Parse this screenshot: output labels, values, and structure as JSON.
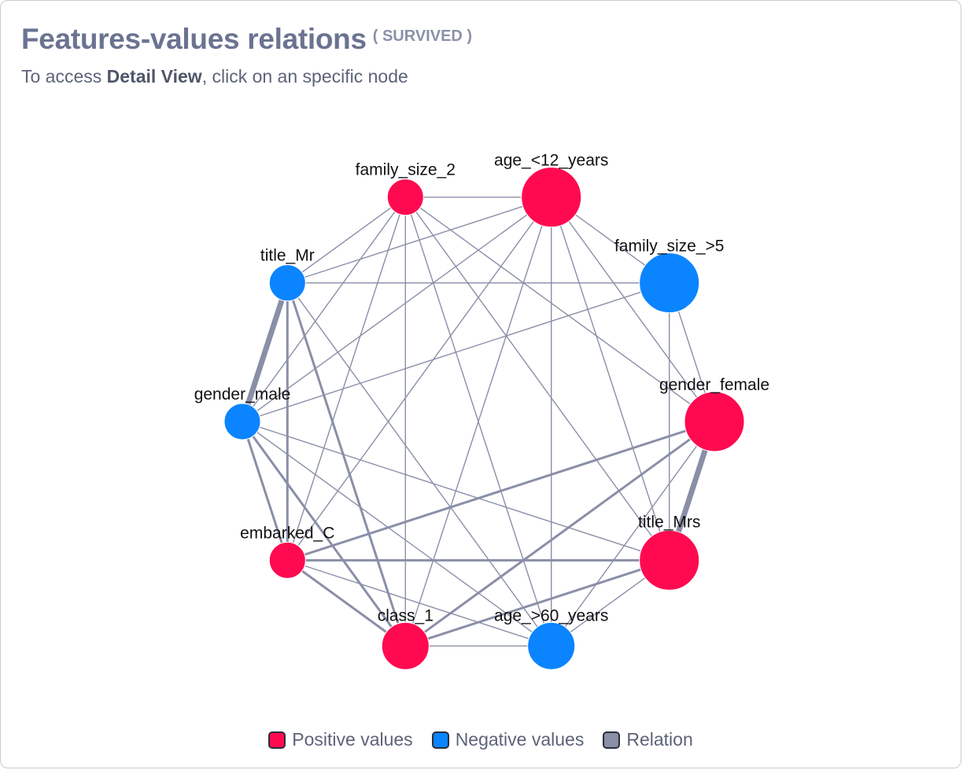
{
  "header": {
    "title": "Features-values relations",
    "target": "( SURVIVED )",
    "subtitle_prefix": "To access ",
    "subtitle_bold": "Detail View",
    "subtitle_suffix": ", click on an specific node"
  },
  "colors": {
    "positive": "#ff0a50",
    "negative": "#0a84ff",
    "relation": "#8a8fa8"
  },
  "graph": {
    "nodes": [
      {
        "id": "age_<12_years",
        "label": "age_<12_years",
        "polarity": "positive",
        "size": 3
      },
      {
        "id": "family_size_>5",
        "label": "family_size_>5",
        "polarity": "negative",
        "size": 3
      },
      {
        "id": "gender_female",
        "label": "gender_female",
        "polarity": "positive",
        "size": 3
      },
      {
        "id": "title_Mrs",
        "label": "title_Mrs",
        "polarity": "positive",
        "size": 3
      },
      {
        "id": "age_>60_years",
        "label": "age_>60_years",
        "polarity": "negative",
        "size": 2
      },
      {
        "id": "class_1",
        "label": "class_1",
        "polarity": "positive",
        "size": 2
      },
      {
        "id": "embarked_C",
        "label": "embarked_C",
        "polarity": "positive",
        "size": 1
      },
      {
        "id": "gender_male",
        "label": "gender_male",
        "polarity": "negative",
        "size": 1
      },
      {
        "id": "title_Mr",
        "label": "title_Mr",
        "polarity": "negative",
        "size": 1
      },
      {
        "id": "family_size_2",
        "label": "family_size_2",
        "polarity": "positive",
        "size": 1
      }
    ],
    "edges": [
      {
        "source": "title_Mr",
        "target": "gender_male",
        "weight": 3
      },
      {
        "source": "gender_female",
        "target": "title_Mrs",
        "weight": 3
      },
      {
        "source": "title_Mr",
        "target": "class_1",
        "weight": 2
      },
      {
        "source": "title_Mr",
        "target": "embarked_C",
        "weight": 2
      },
      {
        "source": "gender_male",
        "target": "class_1",
        "weight": 2
      },
      {
        "source": "gender_male",
        "target": "embarked_C",
        "weight": 2
      },
      {
        "source": "gender_female",
        "target": "class_1",
        "weight": 2
      },
      {
        "source": "gender_female",
        "target": "embarked_C",
        "weight": 2
      },
      {
        "source": "title_Mrs",
        "target": "embarked_C",
        "weight": 2
      },
      {
        "source": "title_Mrs",
        "target": "class_1",
        "weight": 2
      },
      {
        "source": "embarked_C",
        "target": "class_1",
        "weight": 2
      },
      {
        "source": "age_<12_years",
        "target": "family_size_>5",
        "weight": 1
      },
      {
        "source": "age_<12_years",
        "target": "family_size_2",
        "weight": 1
      },
      {
        "source": "age_<12_years",
        "target": "title_Mr",
        "weight": 1
      },
      {
        "source": "age_<12_years",
        "target": "gender_male",
        "weight": 1
      },
      {
        "source": "age_<12_years",
        "target": "embarked_C",
        "weight": 1
      },
      {
        "source": "age_<12_years",
        "target": "class_1",
        "weight": 1
      },
      {
        "source": "age_<12_years",
        "target": "age_>60_years",
        "weight": 1
      },
      {
        "source": "age_<12_years",
        "target": "title_Mrs",
        "weight": 1
      },
      {
        "source": "age_<12_years",
        "target": "gender_female",
        "weight": 1
      },
      {
        "source": "family_size_2",
        "target": "title_Mr",
        "weight": 1
      },
      {
        "source": "family_size_2",
        "target": "gender_male",
        "weight": 1
      },
      {
        "source": "family_size_2",
        "target": "embarked_C",
        "weight": 1
      },
      {
        "source": "family_size_2",
        "target": "class_1",
        "weight": 1
      },
      {
        "source": "family_size_2",
        "target": "age_>60_years",
        "weight": 1
      },
      {
        "source": "family_size_2",
        "target": "title_Mrs",
        "weight": 1
      },
      {
        "source": "family_size_2",
        "target": "gender_female",
        "weight": 1
      },
      {
        "source": "family_size_>5",
        "target": "title_Mr",
        "weight": 1
      },
      {
        "source": "family_size_>5",
        "target": "gender_male",
        "weight": 1
      },
      {
        "source": "family_size_>5",
        "target": "title_Mrs",
        "weight": 1
      },
      {
        "source": "family_size_>5",
        "target": "gender_female",
        "weight": 1
      },
      {
        "source": "title_Mr",
        "target": "age_>60_years",
        "weight": 1
      },
      {
        "source": "gender_male",
        "target": "age_>60_years",
        "weight": 1
      },
      {
        "source": "gender_male",
        "target": "title_Mrs",
        "weight": 1
      },
      {
        "source": "gender_female",
        "target": "age_>60_years",
        "weight": 1
      },
      {
        "source": "title_Mrs",
        "target": "age_>60_years",
        "weight": 1
      },
      {
        "source": "embarked_C",
        "target": "age_>60_years",
        "weight": 1
      },
      {
        "source": "class_1",
        "target": "age_>60_years",
        "weight": 1
      }
    ]
  },
  "legend": [
    {
      "key": "positive",
      "label": "Positive values"
    },
    {
      "key": "negative",
      "label": "Negative values"
    },
    {
      "key": "relation",
      "label": "Relation"
    }
  ]
}
